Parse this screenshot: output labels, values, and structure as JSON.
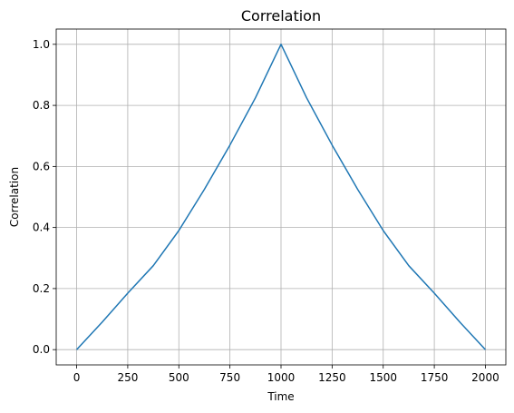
{
  "chart_data": {
    "type": "line",
    "title": "Correlation",
    "xlabel": "Time",
    "ylabel": "Correlation",
    "xlim": [
      -100,
      2100
    ],
    "ylim": [
      -0.05,
      1.05
    ],
    "xticks": [
      0,
      250,
      500,
      750,
      1000,
      1250,
      1500,
      1750,
      2000
    ],
    "xtick_labels": [
      "0",
      "250",
      "500",
      "750",
      "1000",
      "1250",
      "1500",
      "1750",
      "2000"
    ],
    "yticks": [
      0.0,
      0.2,
      0.4,
      0.6,
      0.8,
      1.0
    ],
    "ytick_labels": [
      "0.0",
      "0.2",
      "0.4",
      "0.6",
      "0.8",
      "1.0"
    ],
    "grid": true,
    "color": "#1f77b4",
    "series": [
      {
        "x": [
          0,
          125,
          250,
          375,
          500,
          625,
          750,
          875,
          950,
          1000,
          1050,
          1125,
          1250,
          1375,
          1500,
          1625,
          1750,
          1875,
          2000
        ],
        "values": [
          0.0,
          0.09,
          0.185,
          0.275,
          0.39,
          0.525,
          0.67,
          0.825,
          0.93,
          1.0,
          0.93,
          0.825,
          0.67,
          0.525,
          0.39,
          0.275,
          0.185,
          0.09,
          0.0
        ]
      }
    ]
  }
}
